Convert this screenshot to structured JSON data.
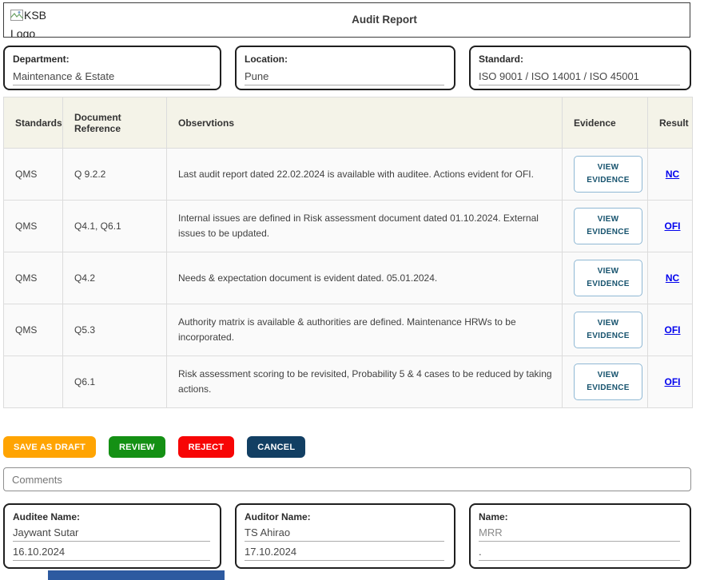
{
  "header": {
    "logo_alt": "KSB Logo",
    "title": "Audit Report"
  },
  "info_fields": [
    {
      "label": "Department:",
      "value": "Maintenance & Estate"
    },
    {
      "label": "Location:",
      "value": "Pune"
    },
    {
      "label": "Standard:",
      "value": "ISO 9001 / ISO 14001 / ISO 45001"
    }
  ],
  "table": {
    "headers": [
      "Standards",
      "Document Reference",
      "Observtions",
      "Evidence",
      "Result"
    ],
    "evidence_button_label": "VIEW EVIDENCE",
    "rows": [
      {
        "standard": "QMS",
        "doc_ref": "Q 9.2.2",
        "observation": "Last audit report dated 22.02.2024 is available with auditee. Actions evident for OFI.",
        "result": "NC"
      },
      {
        "standard": "QMS",
        "doc_ref": "Q4.1, Q6.1",
        "observation": "Internal issues are defined in Risk assessment document dated 01.10.2024. External issues to be updated.",
        "result": "OFI"
      },
      {
        "standard": "QMS",
        "doc_ref": "Q4.2",
        "observation": "Needs & expectation document is evident dated. 05.01.2024.",
        "result": "NC"
      },
      {
        "standard": "QMS",
        "doc_ref": "Q5.3",
        "observation": "Authority matrix is available & authorities are defined. Maintenance HRWs to be incorporated.",
        "result": "OFI"
      },
      {
        "standard": "",
        "doc_ref": "Q6.1",
        "observation": "Risk assessment scoring to be revisited, Probability 5 & 4 cases to be reduced by taking actions.",
        "result": "OFI"
      }
    ]
  },
  "actions": [
    {
      "label": "SAVE AS DRAFT",
      "color": "#ffa402"
    },
    {
      "label": "REVIEW",
      "color": "#149014"
    },
    {
      "label": "REJECT",
      "color": "#f70505"
    },
    {
      "label": "CANCEL",
      "color": "#123f63"
    }
  ],
  "comments": {
    "placeholder": "Comments"
  },
  "signature_fields": [
    {
      "label": "Auditee Name:",
      "name": "Jaywant Sutar",
      "date": "16.10.2024",
      "muted": false
    },
    {
      "label": "Auditor Name:",
      "name": "TS Ahirao",
      "date": "17.10.2024",
      "muted": false
    },
    {
      "label": "Name:",
      "name": "MRR",
      "date": ".",
      "muted": true
    }
  ],
  "colors": {
    "table_header_bg": "#f4f3e8",
    "result_link": "#0101ee",
    "evidence_button_text": "#17536e",
    "evidence_button_border": "#8fb8d4",
    "bottom_bar": "#2d5aa0"
  }
}
